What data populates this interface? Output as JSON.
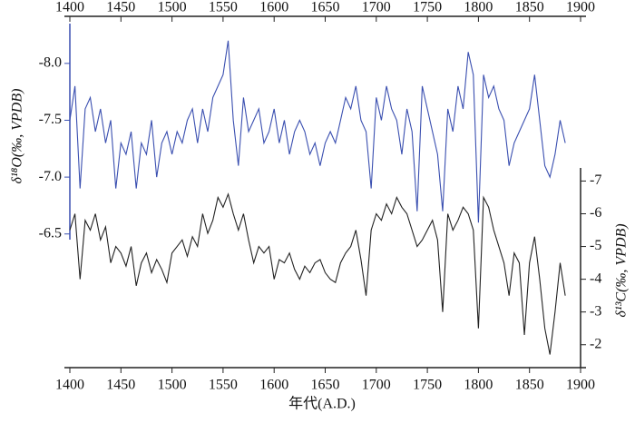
{
  "chart_data": {
    "type": "line",
    "x_label": "年代(A.D.)",
    "y_label": "δ¹⁸O(‰, VPDB)",
    "y2_label": "δ¹³C(‰, VPDB)",
    "x": [
      1400,
      1405,
      1410,
      1415,
      1420,
      1425,
      1430,
      1435,
      1440,
      1445,
      1450,
      1455,
      1460,
      1465,
      1470,
      1475,
      1480,
      1485,
      1490,
      1495,
      1500,
      1505,
      1510,
      1515,
      1520,
      1525,
      1530,
      1535,
      1540,
      1545,
      1550,
      1555,
      1560,
      1565,
      1570,
      1575,
      1580,
      1585,
      1590,
      1595,
      1600,
      1605,
      1610,
      1615,
      1620,
      1625,
      1630,
      1635,
      1640,
      1645,
      1650,
      1655,
      1660,
      1665,
      1670,
      1675,
      1680,
      1685,
      1690,
      1695,
      1700,
      1705,
      1710,
      1715,
      1720,
      1725,
      1730,
      1735,
      1740,
      1745,
      1750,
      1755,
      1760,
      1765,
      1770,
      1775,
      1780,
      1785,
      1790,
      1795,
      1800,
      1805,
      1810,
      1815,
      1820,
      1825,
      1830,
      1835,
      1840,
      1845,
      1850,
      1855,
      1860,
      1865,
      1870,
      1875,
      1880,
      1885
    ],
    "series": [
      {
        "name": "δ18O",
        "color": "#3a4fb0",
        "values": [
          -7.5,
          -7.8,
          -6.9,
          -7.6,
          -7.7,
          -7.4,
          -7.6,
          -7.3,
          -7.5,
          -6.9,
          -7.3,
          -7.2,
          -7.4,
          -6.9,
          -7.3,
          -7.2,
          -7.5,
          -7.0,
          -7.3,
          -7.4,
          -7.2,
          -7.4,
          -7.3,
          -7.5,
          -7.6,
          -7.3,
          -7.6,
          -7.4,
          -7.7,
          -7.8,
          -7.9,
          -8.2,
          -7.5,
          -7.1,
          -7.7,
          -7.4,
          -7.5,
          -7.6,
          -7.3,
          -7.4,
          -7.6,
          -7.3,
          -7.5,
          -7.2,
          -7.4,
          -7.5,
          -7.4,
          -7.2,
          -7.3,
          -7.1,
          -7.3,
          -7.4,
          -7.3,
          -7.5,
          -7.7,
          -7.6,
          -7.8,
          -7.5,
          -7.4,
          -6.9,
          -7.7,
          -7.5,
          -7.8,
          -7.6,
          -7.5,
          -7.2,
          -7.6,
          -7.4,
          -6.7,
          -7.8,
          -7.6,
          -7.4,
          -7.2,
          -6.7,
          -7.6,
          -7.4,
          -7.8,
          -7.6,
          -8.1,
          -7.9,
          -6.6,
          -7.9,
          -7.7,
          -7.8,
          -7.6,
          -7.5,
          -7.1,
          -7.3,
          -7.4,
          -7.5,
          -7.6,
          -7.9,
          -7.5,
          -7.1,
          -7.0,
          -7.2,
          -7.5,
          -7.3
        ]
      },
      {
        "name": "δ13C",
        "color": "#222222",
        "axis": "y2",
        "values": [
          -5.5,
          -6.0,
          -4.0,
          -5.8,
          -5.5,
          -6.0,
          -5.2,
          -5.6,
          -4.5,
          -5.0,
          -4.8,
          -4.4,
          -5.0,
          -3.8,
          -4.5,
          -4.8,
          -4.2,
          -4.6,
          -4.3,
          -3.9,
          -4.8,
          -5.0,
          -5.2,
          -4.7,
          -5.3,
          -5.0,
          -6.0,
          -5.4,
          -5.8,
          -6.5,
          -6.2,
          -6.6,
          -6.0,
          -5.5,
          -6.0,
          -5.2,
          -4.5,
          -5.0,
          -4.8,
          -5.0,
          -4.0,
          -4.6,
          -4.5,
          -4.8,
          -4.3,
          -4.0,
          -4.4,
          -4.2,
          -4.5,
          -4.6,
          -4.2,
          -4.0,
          -3.9,
          -4.5,
          -4.8,
          -5.0,
          -5.5,
          -4.6,
          -3.5,
          -5.5,
          -6.0,
          -5.8,
          -6.3,
          -6.0,
          -6.5,
          -6.2,
          -6.0,
          -5.5,
          -5.0,
          -5.2,
          -5.5,
          -5.8,
          -5.2,
          -3.0,
          -6.0,
          -5.5,
          -5.8,
          -6.2,
          -6.0,
          -5.5,
          -2.5,
          -6.5,
          -6.2,
          -5.5,
          -5.0,
          -4.5,
          -3.5,
          -4.8,
          -4.5,
          -2.3,
          -4.5,
          -5.3,
          -4.0,
          -2.5,
          -1.7,
          -3.0,
          -4.5,
          -3.5
        ]
      }
    ],
    "xlim": [
      1400,
      1900
    ],
    "xticks": [
      1400,
      1450,
      1500,
      1550,
      1600,
      1650,
      1700,
      1750,
      1800,
      1850,
      1900
    ],
    "ylim": [
      -6.45,
      -8.35
    ],
    "yticks": [
      {
        "value": -8,
        "label": "-8.0"
      },
      -7.5,
      {
        "value": -7,
        "label": "-7.0"
      },
      -6.5
    ],
    "y2lim": [
      -1.3,
      -7.4
    ],
    "y2ticks": [
      -7,
      -6,
      -5,
      -4,
      -3,
      -2
    ]
  }
}
